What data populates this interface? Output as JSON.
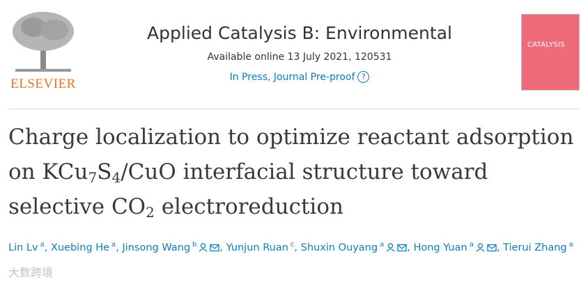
{
  "publisher": {
    "name": "ELSEVIER"
  },
  "journal": {
    "title": "Applied Catalysis B: Environmental",
    "availability": "Available online 13 July 2021, 120531",
    "status": "In Press, Journal Pre-proof",
    "help_icon": "?",
    "cover_text": "CATALYSIS"
  },
  "article": {
    "title_parts": [
      {
        "text": "Charge localization to optimize reactant adsorption on KCu"
      },
      {
        "text": "7",
        "sub": true
      },
      {
        "text": "S"
      },
      {
        "text": "4",
        "sub": true
      },
      {
        "text": "/CuO interfacial structure toward selective CO"
      },
      {
        "text": "2",
        "sub": true
      },
      {
        "text": " electroreduction"
      }
    ],
    "author_separator": ", ",
    "authors": [
      {
        "name": "Lin Lv",
        "affiliation": "a",
        "corresponding": false
      },
      {
        "name": "Xuebing He",
        "affiliation": "a",
        "corresponding": false
      },
      {
        "name": "Jinsong Wang",
        "affiliation": "b",
        "corresponding": true
      },
      {
        "name": "Yunjun Ruan",
        "affiliation": "c",
        "corresponding": false
      },
      {
        "name": "Shuxin Ouyang",
        "affiliation": "a",
        "corresponding": true
      },
      {
        "name": "Hong Yuan",
        "affiliation": "a",
        "corresponding": true
      },
      {
        "name": "Tierui Zhang",
        "affiliation": "a",
        "corresponding": false
      }
    ]
  },
  "watermark": "大数跨境"
}
